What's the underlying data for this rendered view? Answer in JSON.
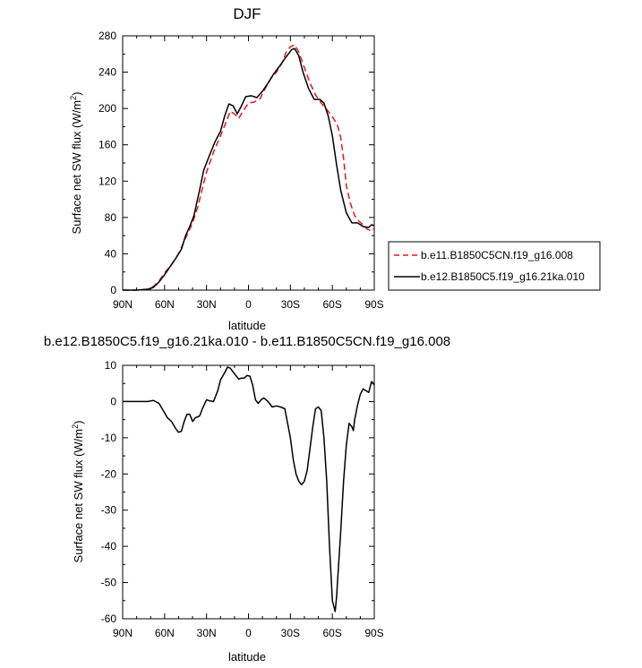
{
  "chart_data": [
    {
      "type": "line",
      "title": "DJF",
      "xlabel": "latitude",
      "ylabel": "Surface net SW flux (W/m",
      "ylabel_sup": "2",
      "ylabel_close": ")",
      "xlim": [
        90,
        -90
      ],
      "ylim": [
        0,
        280
      ],
      "xtick_values": [
        90,
        60,
        30,
        0,
        -30,
        -60,
        -90
      ],
      "xtick_labels": [
        "90N",
        "60N",
        "30N",
        "0",
        "30S",
        "60S",
        "90S"
      ],
      "ytick_values": [
        0,
        40,
        80,
        120,
        160,
        200,
        240,
        280
      ],
      "ytick_labels": [
        "0",
        "40",
        "80",
        "120",
        "160",
        "200",
        "240",
        "280"
      ],
      "legend_position": "right",
      "series": [
        {
          "name": "b.e11.B1850C5CN.f19_g16.008",
          "color": "#e8141b",
          "dash": "dashed",
          "x": [
            90,
            80,
            72,
            68,
            64,
            60,
            55,
            50,
            46,
            43,
            40,
            36,
            33,
            30,
            25,
            20,
            16,
            13,
            10,
            7,
            4,
            0,
            -4,
            -8,
            -12,
            -16,
            -20,
            -24,
            -27,
            -30,
            -33,
            -36,
            -40,
            -44,
            -48,
            -52,
            -56,
            -60,
            -62,
            -64,
            -66,
            -68,
            -70,
            -73,
            -76,
            -79,
            -82,
            -85,
            -88,
            -90
          ],
          "y": [
            0,
            0,
            1,
            4,
            10,
            19,
            28,
            40,
            54,
            64,
            74,
            93,
            112,
            130,
            152,
            170,
            185,
            197,
            194,
            189,
            197,
            206,
            207,
            210,
            222,
            233,
            240,
            250,
            262,
            268,
            270,
            262,
            245,
            228,
            215,
            206,
            199,
            191,
            186,
            180,
            168,
            145,
            115,
            95,
            82,
            76,
            72,
            67,
            65,
            68
          ]
        },
        {
          "name": "b.e12.B1850C5.f19_g16.21ka.010",
          "color": "#000000",
          "dash": "solid",
          "x": [
            90,
            80,
            72,
            68,
            64,
            60,
            56,
            52,
            48,
            45,
            42,
            39,
            35,
            32,
            28,
            24,
            20,
            17,
            14,
            11,
            8,
            5,
            2,
            -2,
            -6,
            -10,
            -14,
            -18,
            -22,
            -26,
            -29,
            -31,
            -33,
            -36,
            -39,
            -43,
            -47,
            -51,
            -54,
            -57,
            -60,
            -63,
            -66,
            -70,
            -74,
            -78,
            -82,
            -86,
            -88,
            -90
          ],
          "y": [
            0,
            0,
            1,
            3,
            9,
            17,
            26,
            35,
            45,
            60,
            70,
            82,
            110,
            132,
            148,
            163,
            175,
            192,
            205,
            203,
            194,
            203,
            213,
            214,
            212,
            219,
            228,
            238,
            246,
            255,
            261,
            265,
            266,
            258,
            240,
            222,
            210,
            210,
            206,
            192,
            170,
            138,
            110,
            85,
            74,
            74,
            70,
            69,
            72,
            71
          ]
        }
      ]
    },
    {
      "type": "line",
      "title": "b.e12.B1850C5.f19_g16.21ka.010 - b.e11.B1850C5CN.f19_g16.008",
      "xlabel": "latitude",
      "ylabel": "Surface net SW flux (W/m",
      "ylabel_sup": "2",
      "ylabel_close": ")",
      "xlim": [
        90,
        -90
      ],
      "ylim": [
        -60,
        10
      ],
      "xtick_values": [
        90,
        60,
        30,
        0,
        -30,
        -60,
        -90
      ],
      "xtick_labels": [
        "90N",
        "60N",
        "30N",
        "0",
        "30S",
        "60S",
        "90S"
      ],
      "ytick_values": [
        -60,
        -50,
        -40,
        -30,
        -20,
        -10,
        0,
        10
      ],
      "ytick_labels": [
        "-60",
        "-50",
        "-40",
        "-30",
        "-20",
        "-10",
        "0",
        "10"
      ],
      "series": [
        {
          "color": "#000000",
          "dash": "solid",
          "x": [
            90,
            80,
            72,
            68,
            64,
            61,
            58,
            55,
            52,
            50,
            48,
            46,
            44,
            42,
            40,
            38,
            35,
            33,
            30,
            28,
            25,
            22,
            20,
            17,
            15,
            13,
            11,
            9,
            7,
            5,
            3,
            1,
            -1,
            -3,
            -5,
            -7,
            -9,
            -11,
            -14,
            -17,
            -20,
            -23,
            -26,
            -28,
            -30,
            -32,
            -34,
            -36,
            -38,
            -40,
            -42,
            -44,
            -46,
            -48,
            -50,
            -52,
            -54,
            -56,
            -58,
            -60,
            -62,
            -63,
            -64,
            -66,
            -68,
            -70,
            -72,
            -74,
            -75,
            -76,
            -78,
            -80,
            -82,
            -84,
            -86,
            -87,
            -88,
            -89,
            -90
          ],
          "y": [
            0,
            0,
            0,
            0.3,
            -0.5,
            -2.5,
            -4.5,
            -5.5,
            -7.5,
            -8.5,
            -8.2,
            -5.5,
            -3.5,
            -3.5,
            -5.5,
            -4.5,
            -4,
            -2,
            0.5,
            0.2,
            0,
            3,
            6,
            8,
            9.5,
            9.2,
            8.2,
            7.2,
            6.2,
            6.5,
            6.5,
            7.2,
            7,
            4.5,
            0.5,
            -0.5,
            0.5,
            1,
            0,
            -1.5,
            -1.2,
            -1.5,
            -2,
            -6,
            -10,
            -16,
            -20,
            -22,
            -23,
            -22,
            -19,
            -13,
            -7,
            -2,
            -1.5,
            -2.5,
            -10,
            -22,
            -40,
            -55,
            -58,
            -54,
            -48,
            -36,
            -22,
            -12,
            -6,
            -7,
            -8,
            -5,
            -1,
            2,
            3.5,
            3,
            2.5,
            4,
            5.5,
            5.2,
            4.5
          ]
        }
      ]
    }
  ]
}
